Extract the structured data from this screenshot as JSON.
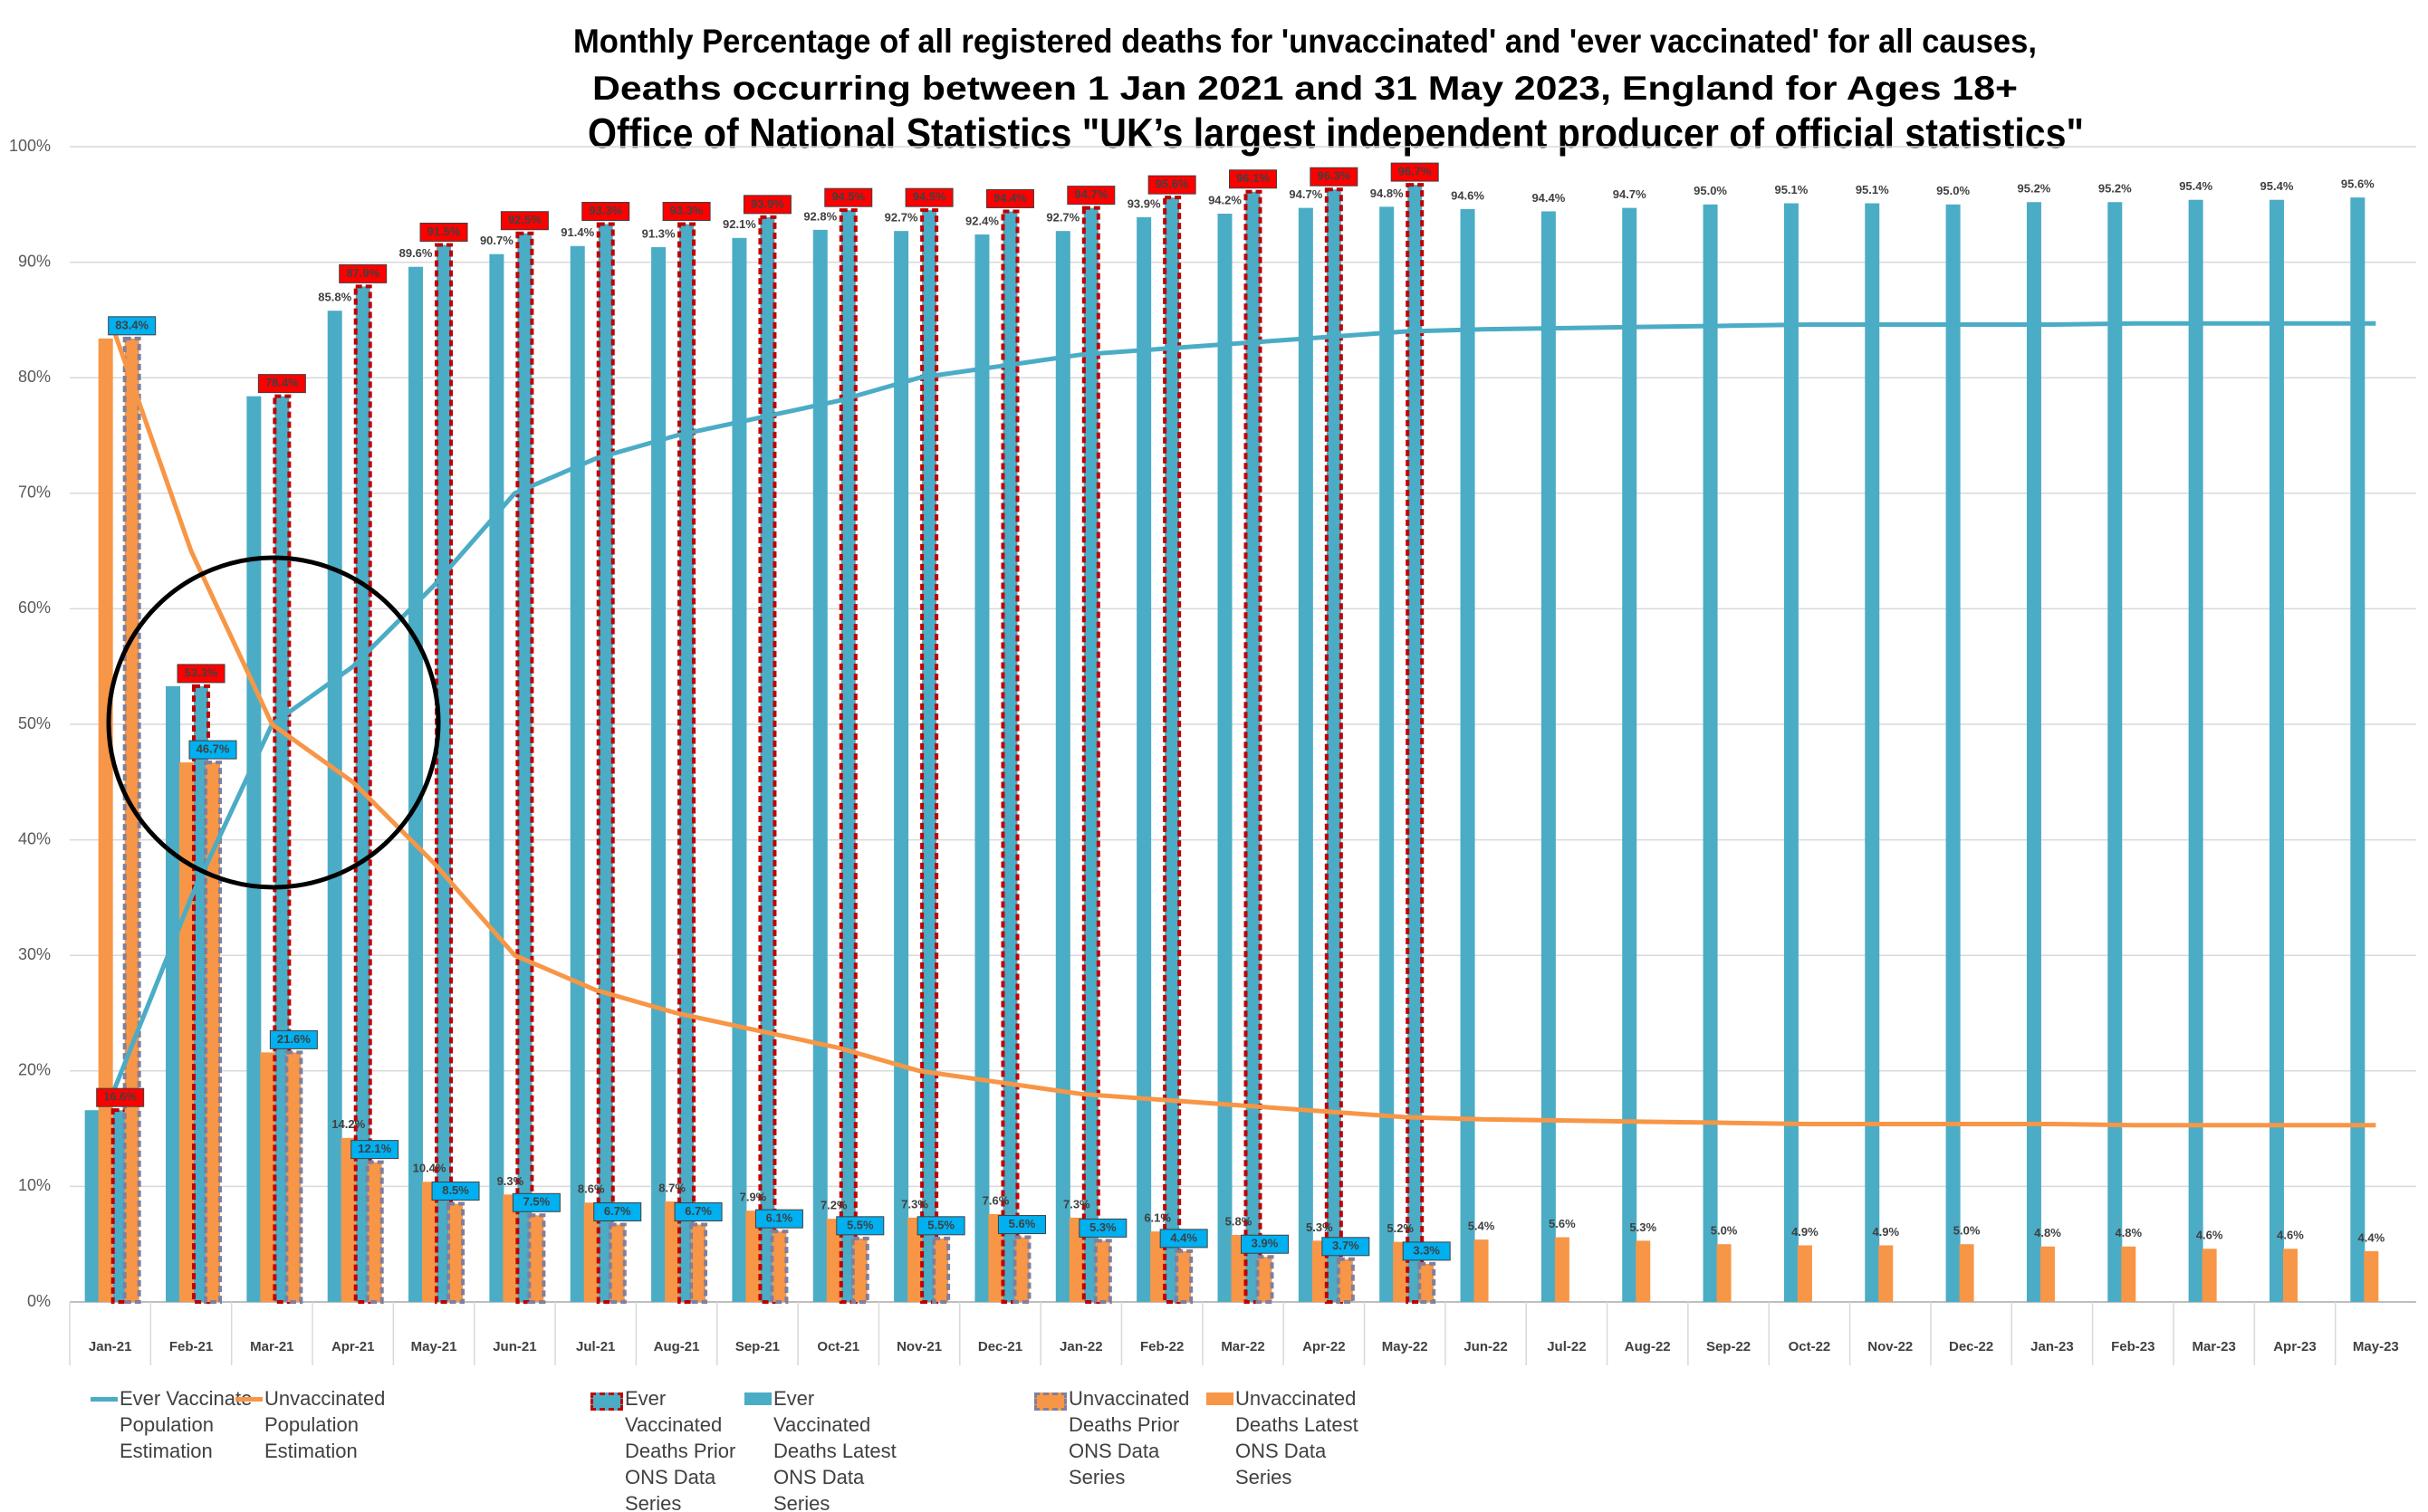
{
  "chart_data": {
    "type": "bar",
    "title": "Monthly Percentage of all registered deaths for 'unvaccinated' and 'ever vaccinated'  for all causes,",
    "subtitle": "Deaths occurring between 1 Jan 2021 and 31 May 2023, England for Ages 18+",
    "annotation": "Office of National Statistics \"UK’s largest independent producer of official statistics\"",
    "categories": [
      "Jan-21",
      "Feb-21",
      "Mar-21",
      "Apr-21",
      "May-21",
      "Jun-21",
      "Jul-21",
      "Aug-21",
      "Sep-21",
      "Oct-21",
      "Nov-21",
      "Dec-21",
      "Jan-22",
      "Feb-22",
      "Mar-22",
      "Apr-22",
      "May-22",
      "Jun-22",
      "Jul-22",
      "Aug-22",
      "Sep-22",
      "Oct-22",
      "Nov-22",
      "Dec-22",
      "Jan-23",
      "Feb-23",
      "Mar-23",
      "Apr-23",
      "May-23"
    ],
    "ylim": [
      0,
      100
    ],
    "yticks": [
      {
        "value": 0,
        "label": "0%"
      },
      {
        "value": 10,
        "label": "10%"
      },
      {
        "value": 20,
        "label": "20%"
      },
      {
        "value": 30,
        "label": "30%"
      },
      {
        "value": 40,
        "label": "40%"
      },
      {
        "value": 50,
        "label": "50%"
      },
      {
        "value": 60,
        "label": "60%"
      },
      {
        "value": 70,
        "label": "70%"
      },
      {
        "value": 80,
        "label": "80%"
      },
      {
        "value": 90,
        "label": "90%"
      },
      {
        "value": 100,
        "label": "100%"
      }
    ],
    "grid": true,
    "legend": "bottom",
    "series": [
      {
        "name": "Ever Vaccinate Population Estimation",
        "type": "line",
        "color": "#4bacc6",
        "values": [
          17.5,
          35,
          50,
          55,
          62,
          70,
          73,
          75,
          76.5,
          78,
          80,
          81,
          82,
          82.5,
          83,
          83.5,
          84,
          84.2,
          84.3,
          84.4,
          84.5,
          84.6,
          84.6,
          84.6,
          84.6,
          84.7,
          84.7,
          84.7,
          84.7
        ]
      },
      {
        "name": "Unvaccinated Population Estimation",
        "type": "line",
        "color": "#f79646",
        "values": [
          85,
          65,
          50,
          45,
          38,
          30,
          27,
          25,
          23.5,
          22,
          20,
          19,
          18,
          17.5,
          17,
          16.5,
          16,
          15.8,
          15.7,
          15.6,
          15.5,
          15.4,
          15.4,
          15.4,
          15.4,
          15.3,
          15.3,
          15.3,
          15.3
        ]
      },
      {
        "name": "Ever Vaccinated Deaths Prior ONS Data Series",
        "type": "bar",
        "color": "#4bacc6",
        "edge_color": "#c00000",
        "label_color": "#ff0000",
        "values": [
          16.6,
          53.3,
          78.4,
          87.9,
          91.5,
          92.5,
          93.3,
          93.3,
          93.9,
          94.5,
          94.5,
          94.4,
          94.7,
          95.6,
          96.1,
          96.3,
          96.7,
          null,
          null,
          null,
          null,
          null,
          null,
          null,
          null,
          null,
          null,
          null,
          null
        ],
        "value_labels": [
          "16.6%",
          "53.3%",
          "78.4%",
          "87.9%",
          "91.5%",
          "92.5%",
          "93.3%",
          "93.3%",
          "93.9%",
          "94.5%",
          "94.5%",
          "94.4%",
          "94.7%",
          "95.6%",
          "96.1%",
          "96.3%",
          "96.7%",
          null,
          null,
          null,
          null,
          null,
          null,
          null,
          null,
          null,
          null,
          null,
          null
        ]
      },
      {
        "name": "Ever Vaccinated Deaths Latest ONS Data Series",
        "type": "bar",
        "color": "#4bacc6",
        "values": [
          16.6,
          53.3,
          78.4,
          85.8,
          89.6,
          90.7,
          91.4,
          91.3,
          92.1,
          92.8,
          92.7,
          92.4,
          92.7,
          93.9,
          94.2,
          94.7,
          94.8,
          94.6,
          94.4,
          94.7,
          95.0,
          95.1,
          95.1,
          95.0,
          95.2,
          95.2,
          95.4,
          95.4,
          95.6
        ],
        "value_labels": [
          null,
          null,
          null,
          "85.8%",
          "89.6%",
          "90.7%",
          "91.4%",
          "91.3%",
          "92.1%",
          "92.8%",
          "92.7%",
          "92.4%",
          "92.7%",
          "93.9%",
          "94.2%",
          "94.7%",
          "94.8%",
          "94.6%",
          "94.4%",
          "94.7%",
          "95.0%",
          "95.1%",
          "95.1%",
          "95.0%",
          "95.2%",
          "95.2%",
          "95.4%",
          "95.4%",
          "95.6%"
        ]
      },
      {
        "name": "Unvaccinated Deaths Prior ONS Data Series",
        "type": "bar",
        "color": "#f79646",
        "edge_color": "#7f7f9f",
        "label_color": "#00b0f0",
        "values": [
          83.4,
          46.7,
          21.6,
          12.1,
          8.5,
          7.5,
          6.7,
          6.7,
          6.1,
          5.5,
          5.5,
          5.6,
          5.3,
          4.4,
          3.9,
          3.7,
          3.3,
          null,
          null,
          null,
          null,
          null,
          null,
          null,
          null,
          null,
          null,
          null,
          null
        ],
        "value_labels": [
          "83.4%",
          "46.7%",
          "21.6%",
          "12.1%",
          "8.5%",
          "7.5%",
          "6.7%",
          "6.7%",
          "6.1%",
          "5.5%",
          "5.5%",
          "5.6%",
          "5.3%",
          "4.4%",
          "3.9%",
          "3.7%",
          "3.3%",
          null,
          null,
          null,
          null,
          null,
          null,
          null,
          null,
          null,
          null,
          null,
          null
        ]
      },
      {
        "name": "Unvaccinated Deaths Latest ONS Data Series",
        "type": "bar",
        "color": "#f79646",
        "values": [
          83.4,
          46.7,
          21.6,
          14.2,
          10.4,
          9.3,
          8.6,
          8.7,
          7.9,
          7.2,
          7.3,
          7.6,
          7.3,
          6.1,
          5.8,
          5.3,
          5.2,
          5.4,
          5.6,
          5.3,
          5.0,
          4.9,
          4.9,
          5.0,
          4.8,
          4.8,
          4.6,
          4.6,
          4.4
        ],
        "value_labels": [
          null,
          null,
          null,
          "14.2%",
          "10.4%",
          "9.3%",
          "8.6%",
          "8.7%",
          "7.9%",
          "7.2%",
          "7.3%",
          "7.6%",
          "7.3%",
          "6.1%",
          "5.8%",
          "5.3%",
          "5.2%",
          "5.4%",
          "5.6%",
          "5.3%",
          "5.0%",
          "4.9%",
          "4.9%",
          "5.0%",
          "4.8%",
          "4.8%",
          "4.6%",
          "4.6%",
          "4.4%"
        ]
      }
    ]
  }
}
